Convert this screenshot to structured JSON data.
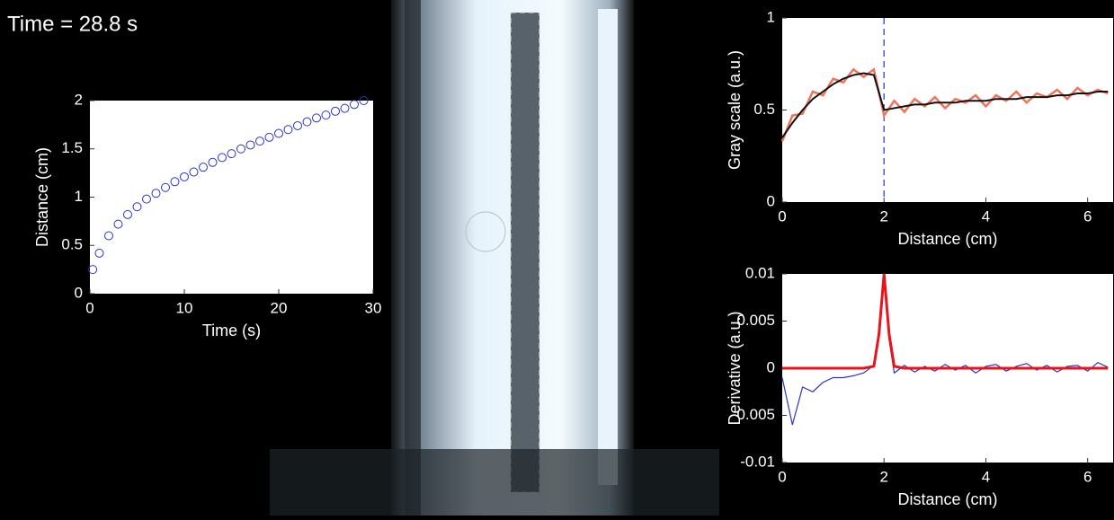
{
  "overlay": {
    "time_label": "Time = 28.8 s"
  },
  "chart_data": [
    {
      "type": "scatter",
      "xlabel": "Time (s)",
      "ylabel": "Distance (cm)",
      "x": [
        0.3,
        1,
        2,
        3,
        4,
        5,
        6,
        7,
        8,
        9,
        10,
        11,
        12,
        13,
        14,
        15,
        16,
        17,
        18,
        19,
        20,
        21,
        22,
        23,
        24,
        25,
        26,
        27,
        28,
        29
      ],
      "values": [
        0.25,
        0.42,
        0.6,
        0.72,
        0.82,
        0.9,
        0.98,
        1.04,
        1.1,
        1.16,
        1.21,
        1.26,
        1.31,
        1.36,
        1.41,
        1.45,
        1.5,
        1.54,
        1.58,
        1.62,
        1.66,
        1.7,
        1.74,
        1.78,
        1.82,
        1.85,
        1.89,
        1.92,
        1.96,
        2.0
      ],
      "color": "#2b35c9",
      "xlim": [
        0,
        30
      ],
      "ylim": [
        0,
        2
      ],
      "xticks": [
        0,
        10,
        20,
        30
      ],
      "yticks": [
        0,
        0.5,
        1,
        1.5,
        2
      ]
    },
    {
      "type": "line",
      "xlabel": "Distance (cm)",
      "ylabel": "Gray scale (a.u.)",
      "x": [
        0,
        0.2,
        0.4,
        0.6,
        0.8,
        1.0,
        1.2,
        1.4,
        1.6,
        1.8,
        2.0,
        2.2,
        2.4,
        2.6,
        2.8,
        3.0,
        3.2,
        3.4,
        3.6,
        3.8,
        4.0,
        4.2,
        4.4,
        4.6,
        4.8,
        5.0,
        5.2,
        5.4,
        5.6,
        5.8,
        6.0,
        6.2,
        6.4
      ],
      "series": [
        {
          "color": "#f0735a",
          "width": 2.5,
          "values": [
            0.33,
            0.47,
            0.48,
            0.6,
            0.58,
            0.67,
            0.65,
            0.72,
            0.68,
            0.72,
            0.47,
            0.55,
            0.49,
            0.56,
            0.52,
            0.57,
            0.51,
            0.56,
            0.54,
            0.58,
            0.52,
            0.58,
            0.55,
            0.6,
            0.54,
            0.59,
            0.57,
            0.61,
            0.56,
            0.62,
            0.58,
            0.61,
            0.59
          ]
        },
        {
          "color": "#111111",
          "width": 2,
          "values": [
            0.35,
            0.43,
            0.5,
            0.56,
            0.6,
            0.64,
            0.67,
            0.69,
            0.7,
            0.69,
            0.5,
            0.51,
            0.52,
            0.53,
            0.53,
            0.54,
            0.54,
            0.54,
            0.55,
            0.55,
            0.55,
            0.56,
            0.56,
            0.56,
            0.57,
            0.57,
            0.57,
            0.58,
            0.58,
            0.59,
            0.59,
            0.6,
            0.6
          ]
        }
      ],
      "vline": {
        "x": 2,
        "color": "#4a5ad0"
      },
      "xlim": [
        0,
        6.5
      ],
      "ylim": [
        0,
        1
      ],
      "xticks": [
        0,
        2,
        4,
        6
      ],
      "yticks": [
        0,
        0.5,
        1
      ]
    },
    {
      "type": "line",
      "xlabel": "Distance (cm)",
      "ylabel": "Derivative (a.u.)",
      "x": [
        0,
        0.2,
        0.4,
        0.6,
        0.8,
        1.0,
        1.2,
        1.4,
        1.6,
        1.8,
        1.9,
        2.0,
        2.1,
        2.2,
        2.4,
        2.6,
        2.8,
        3.0,
        3.2,
        3.4,
        3.6,
        3.8,
        4.0,
        4.2,
        4.4,
        4.6,
        4.8,
        5.0,
        5.2,
        5.4,
        5.6,
        5.8,
        6.0,
        6.2,
        6.4
      ],
      "series": [
        {
          "color": "#2b35c9",
          "width": 1.2,
          "values": [
            -0.001,
            -0.006,
            -0.002,
            -0.0025,
            -0.0015,
            -0.001,
            -0.001,
            -0.0008,
            -0.0005,
            0.0003,
            0.004,
            0.0095,
            0.003,
            -0.0005,
            0.0003,
            -0.0004,
            0.0002,
            -0.0003,
            0.0004,
            -0.0002,
            0.0003,
            -0.0005,
            0.0002,
            0.0004,
            -0.0003,
            0.0002,
            0.0005,
            -0.0002,
            0.0003,
            -0.0004,
            0.0002,
            0.0003,
            -0.0003,
            0.0006,
            0.0001
          ]
        },
        {
          "color": "#e8141a",
          "width": 3,
          "values": [
            0,
            0,
            0,
            0,
            0,
            0,
            0,
            0,
            0,
            0.0002,
            0.0036,
            0.01,
            0.0036,
            0.0002,
            0,
            0,
            0,
            0,
            0,
            0,
            0,
            0,
            0,
            0,
            0,
            0,
            0,
            0,
            0,
            0,
            0,
            0,
            0,
            0,
            0
          ]
        }
      ],
      "xlim": [
        0,
        6.5
      ],
      "ylim": [
        -0.01,
        0.01
      ],
      "xticks": [
        0,
        2,
        4,
        6
      ],
      "yticks": [
        -0.01,
        -0.005,
        0,
        0.005,
        0.01
      ]
    }
  ]
}
